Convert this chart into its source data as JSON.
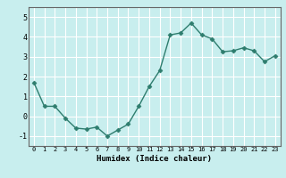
{
  "x": [
    0,
    1,
    2,
    3,
    4,
    5,
    6,
    7,
    8,
    9,
    10,
    11,
    12,
    13,
    14,
    15,
    16,
    17,
    18,
    19,
    20,
    21,
    22,
    23
  ],
  "y": [
    1.7,
    0.5,
    0.5,
    -0.1,
    -0.6,
    -0.65,
    -0.55,
    -1.0,
    -0.7,
    -0.4,
    0.5,
    1.5,
    2.3,
    4.1,
    4.2,
    4.7,
    4.1,
    3.9,
    3.25,
    3.3,
    3.45,
    3.3,
    2.75,
    3.05
  ],
  "line_color": "#2e7d6e",
  "marker": "D",
  "marker_size": 2.5,
  "xlabel": "Humidex (Indice chaleur)",
  "bg_color": "#c8eeee",
  "grid_color": "#ffffff",
  "ylim": [
    -1.5,
    5.5
  ],
  "xlim": [
    -0.5,
    23.5
  ],
  "yticks": [
    -1,
    0,
    1,
    2,
    3,
    4,
    5
  ],
  "xticks": [
    0,
    1,
    2,
    3,
    4,
    5,
    6,
    7,
    8,
    9,
    10,
    11,
    12,
    13,
    14,
    15,
    16,
    17,
    18,
    19,
    20,
    21,
    22,
    23
  ]
}
